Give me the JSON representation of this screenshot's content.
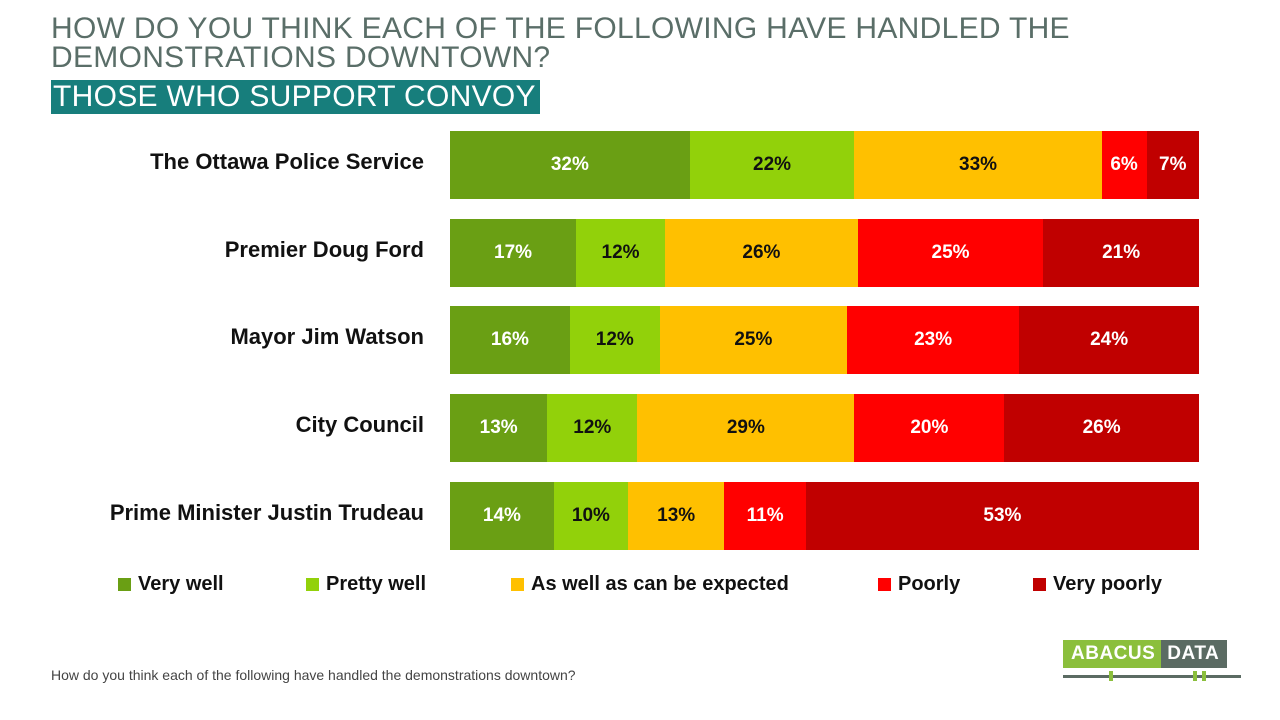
{
  "title": "HOW DO YOU THINK EACH OF THE FOLLOWING HAVE HANDLED THE DEMONSTRATIONS DOWNTOWN?",
  "subtitle": "THOSE WHO SUPPORT CONVOY",
  "footnote": "How do you think each of the following have handled the demonstrations downtown?",
  "logo": {
    "left": "ABACUS",
    "right": "DATA"
  },
  "colors": {
    "very_well": "#6a9f14",
    "pretty_well": "#92d10a",
    "as_expected": "#ffc000",
    "poorly": "#ff0000",
    "very_poorly": "#c00000"
  },
  "chart_data": {
    "type": "bar",
    "orientation": "horizontal",
    "stacked": true,
    "title": "HOW DO YOU THINK EACH OF THE FOLLOWING HAVE HANDLED THE DEMONSTRATIONS DOWNTOWN?",
    "subtitle": "THOSE WHO SUPPORT CONVOY",
    "categories": [
      "The Ottawa Police Service",
      "Premier Doug Ford",
      "Mayor Jim Watson",
      "City Council",
      "Prime Minister Justin Trudeau"
    ],
    "series": [
      {
        "name": "Very well",
        "color": "#6a9f14",
        "label_color": "#ffffff",
        "values": [
          32,
          17,
          16,
          13,
          14
        ]
      },
      {
        "name": "Pretty well",
        "color": "#92d10a",
        "label_color": "#111111",
        "values": [
          22,
          12,
          12,
          12,
          10
        ]
      },
      {
        "name": "As well as can be expected",
        "color": "#ffc000",
        "label_color": "#111111",
        "values": [
          33,
          26,
          25,
          29,
          13
        ]
      },
      {
        "name": "Poorly",
        "color": "#ff0000",
        "label_color": "#ffffff",
        "values": [
          6,
          25,
          23,
          20,
          11
        ]
      },
      {
        "name": "Very poorly",
        "color": "#c00000",
        "label_color": "#ffffff",
        "values": [
          7,
          21,
          24,
          26,
          53
        ]
      }
    ],
    "value_suffix": "%",
    "legend_position": "bottom",
    "grid": false
  }
}
